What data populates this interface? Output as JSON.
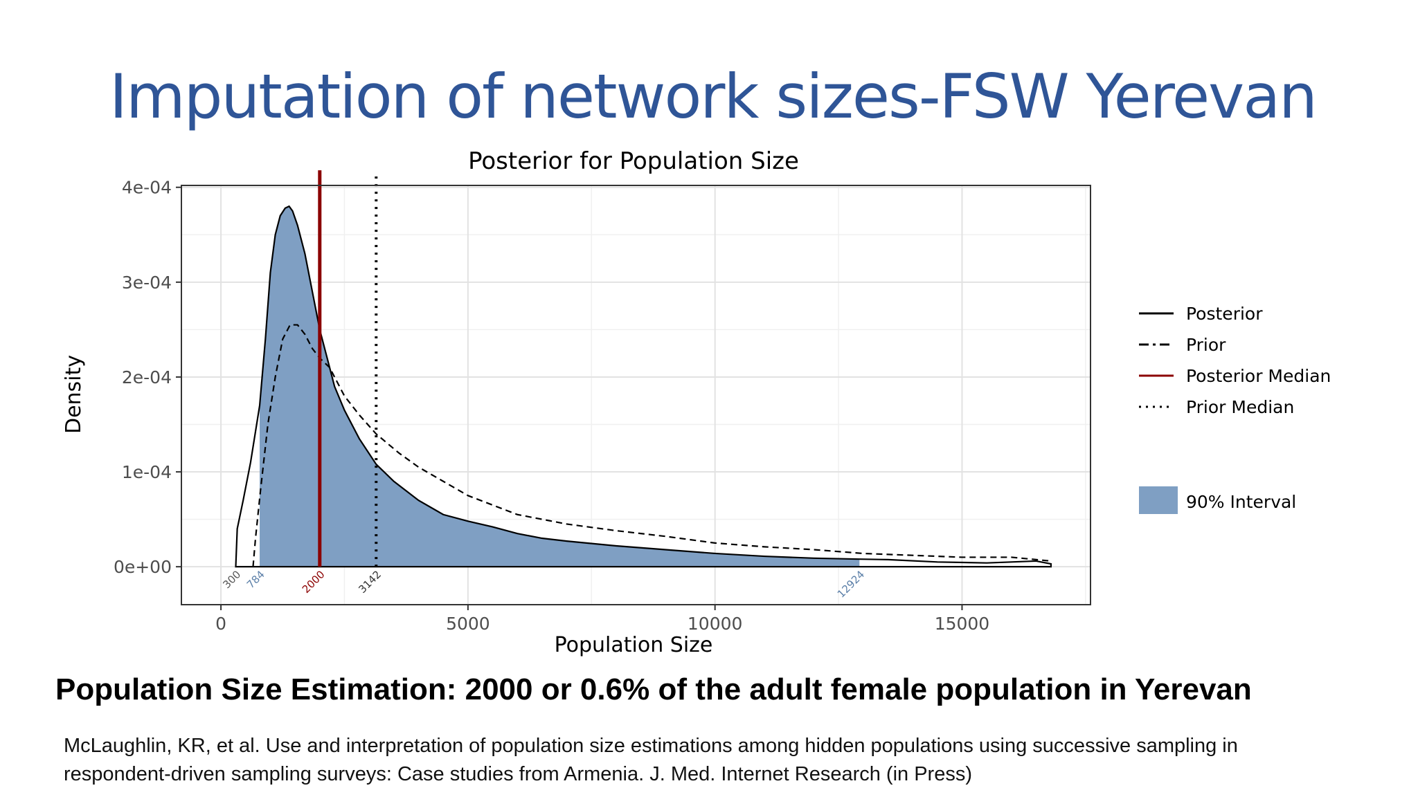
{
  "slide": {
    "title": "Imputation of network sizes-FSW Yerevan",
    "headline": "Population Size Estimation: 2000 or 0.6% of the adult female population in Yerevan",
    "citation_line1": "McLaughlin, KR, et al. Use and interpretation of population size estimations among hidden populations using successive sampling in",
    "citation_line2": "respondent-driven sampling surveys: Case studies from Armenia. J. Med. Internet Research (in Press)"
  },
  "chart_data": {
    "type": "area",
    "title": "Posterior for Population Size",
    "xlabel": "Population Size",
    "ylabel": "Density",
    "xlim": [
      -800,
      17600
    ],
    "ylim": [
      -4e-05,
      0.000402
    ],
    "x_ticks": [
      0,
      5000,
      10000,
      15000
    ],
    "x_tick_labels": [
      "0",
      "5000",
      "10000",
      "15000"
    ],
    "y_ticks": [
      0,
      0.0001,
      0.0002,
      0.0003,
      0.0004
    ],
    "y_tick_labels": [
      "0e+00",
      "1e-04",
      "2e-04",
      "3e-04",
      "4e-04"
    ],
    "grid": true,
    "legend_position": "right",
    "series": [
      {
        "name": "Posterior",
        "style": "solid",
        "points": [
          [
            300,
            0
          ],
          [
            330,
            4e-05
          ],
          [
            450,
            7e-05
          ],
          [
            600,
            0.00011
          ],
          [
            784,
            0.00017
          ],
          [
            900,
            0.00024
          ],
          [
            1000,
            0.00031
          ],
          [
            1100,
            0.00035
          ],
          [
            1200,
            0.00037
          ],
          [
            1300,
            0.000378
          ],
          [
            1380,
            0.00038
          ],
          [
            1450,
            0.000375
          ],
          [
            1550,
            0.00036
          ],
          [
            1700,
            0.00033
          ],
          [
            1850,
            0.00029
          ],
          [
            2000,
            0.00025
          ],
          [
            2150,
            0.00022
          ],
          [
            2300,
            0.00019
          ],
          [
            2500,
            0.000165
          ],
          [
            2800,
            0.000135
          ],
          [
            3142,
            0.000108
          ],
          [
            3500,
            9e-05
          ],
          [
            4000,
            7e-05
          ],
          [
            4500,
            5.5e-05
          ],
          [
            5000,
            4.8e-05
          ],
          [
            5500,
            4.2e-05
          ],
          [
            6000,
            3.5e-05
          ],
          [
            6500,
            3e-05
          ],
          [
            7000,
            2.7e-05
          ],
          [
            8000,
            2.2e-05
          ],
          [
            9000,
            1.8e-05
          ],
          [
            10000,
            1.4e-05
          ],
          [
            11000,
            1.1e-05
          ],
          [
            12000,
            9e-06
          ],
          [
            12924,
            8e-06
          ],
          [
            13500,
            7.5e-06
          ],
          [
            14500,
            5e-06
          ],
          [
            15500,
            4e-06
          ],
          [
            16000,
            5e-06
          ],
          [
            16500,
            6e-06
          ],
          [
            16800,
            3e-06
          ]
        ]
      },
      {
        "name": "Prior",
        "style": "dashed",
        "points": [
          [
            650,
            0
          ],
          [
            700,
            3e-05
          ],
          [
            800,
            8e-05
          ],
          [
            950,
            0.00015
          ],
          [
            1100,
            0.0002
          ],
          [
            1250,
            0.00024
          ],
          [
            1400,
            0.000255
          ],
          [
            1550,
            0.000255
          ],
          [
            1700,
            0.000245
          ],
          [
            1850,
            0.00023
          ],
          [
            2000,
            0.00022
          ],
          [
            2200,
            0.00021
          ],
          [
            2500,
            0.00018
          ],
          [
            2800,
            0.00016
          ],
          [
            3142,
            0.00014
          ],
          [
            3600,
            0.00012
          ],
          [
            4000,
            0.000105
          ],
          [
            4500,
            9e-05
          ],
          [
            5000,
            7.5e-05
          ],
          [
            5500,
            6.5e-05
          ],
          [
            6000,
            5.5e-05
          ],
          [
            7000,
            4.5e-05
          ],
          [
            8000,
            3.8e-05
          ],
          [
            9000,
            3.2e-05
          ],
          [
            10000,
            2.5e-05
          ],
          [
            11000,
            2.1e-05
          ],
          [
            12000,
            1.8e-05
          ],
          [
            13000,
            1.4e-05
          ],
          [
            14000,
            1.2e-05
          ],
          [
            15000,
            1e-05
          ],
          [
            16000,
            1e-05
          ],
          [
            16800,
            6e-06
          ]
        ]
      },
      {
        "name": "Posterior Median",
        "style": "vline",
        "color": "#8b0000",
        "x": 2000
      },
      {
        "name": "Prior Median",
        "style": "vline-dotted",
        "x": 3142
      }
    ],
    "interval": {
      "name": "90% Interval",
      "color": "#7f9fc3",
      "from": 784,
      "to": 12924
    },
    "axis_annotations": [
      {
        "x": 300,
        "label": "300",
        "color": "#555555"
      },
      {
        "x": 784,
        "label": "784",
        "color": "#5b7fa8"
      },
      {
        "x": 2000,
        "label": "2000",
        "color": "#8b0000"
      },
      {
        "x": 3142,
        "label": "3142",
        "color": "#333333"
      },
      {
        "x": 12924,
        "label": "12924",
        "color": "#5b7fa8"
      }
    ]
  }
}
